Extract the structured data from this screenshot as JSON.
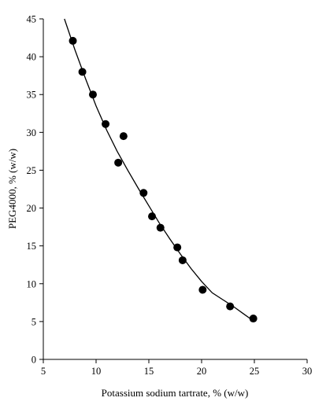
{
  "chart_data": {
    "type": "scatter",
    "xlabel": "Potassium sodium tartrate, % (w/w)",
    "ylabel": "PEG4000, % (w/w)",
    "xlim": [
      5,
      30
    ],
    "ylim": [
      0,
      45
    ],
    "x_ticks": [
      "5",
      "10",
      "15",
      "20",
      "25",
      "30"
    ],
    "y_ticks": [
      "0",
      "5",
      "10",
      "15",
      "20",
      "25",
      "30",
      "35",
      "40",
      "45"
    ],
    "grid": false,
    "legend": "none",
    "series": [
      {
        "type": "scatter",
        "marker": "filled-circle",
        "color": "#000000",
        "x": [
          7.8,
          8.7,
          9.7,
          10.9,
          12.6,
          12.1,
          14.5,
          15.3,
          16.1,
          17.7,
          18.2,
          20.1,
          22.7,
          24.9
        ],
        "y": [
          42.1,
          38.0,
          35.0,
          31.1,
          29.5,
          26.0,
          22.0,
          18.9,
          17.4,
          14.8,
          13.1,
          9.2,
          7.0,
          5.4
        ]
      },
      {
        "type": "line",
        "color": "#000000",
        "x": [
          7.0,
          8.0,
          9.0,
          10.0,
          11.0,
          12.0,
          13.0,
          14.0,
          15.0,
          16.0,
          17.0,
          18.0,
          19.0,
          20.0,
          21.0,
          22.0,
          23.0,
          24.0,
          25.0
        ],
        "y": [
          45.0,
          40.9,
          37.1,
          33.5,
          30.3,
          27.5,
          25.0,
          22.6,
          20.3,
          18.0,
          15.9,
          13.9,
          12.0,
          10.3,
          8.8,
          7.9,
          7.0,
          6.0,
          5.0
        ]
      }
    ]
  }
}
